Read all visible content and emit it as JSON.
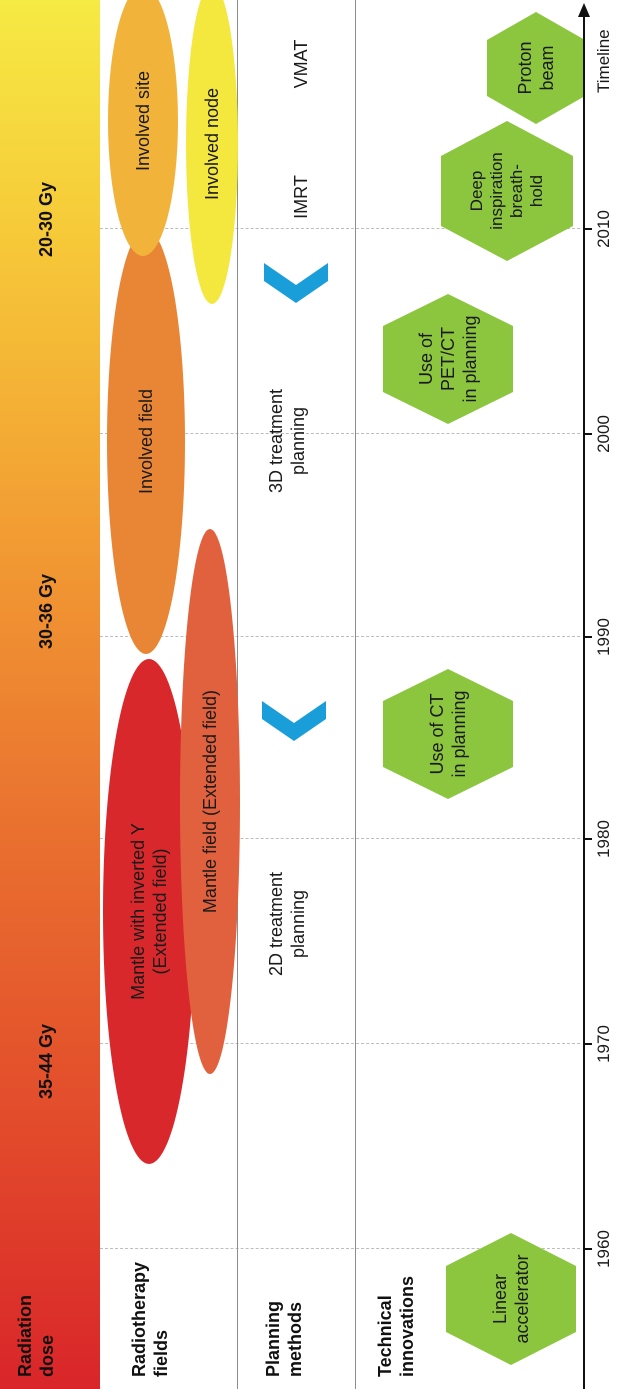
{
  "radiation_dose": {
    "label": "Radiation\ndose",
    "levels": [
      "35-44 Gy",
      "30-36 Gy",
      "20-30 Gy"
    ]
  },
  "radiotherapy_fields": {
    "label": "Radiotherapy\nfields",
    "items": [
      {
        "text": "Mantle with inverted Y\n(Extended field)",
        "color": "#d9282c"
      },
      {
        "text": "Mantle field (Extended field)",
        "color": "#e1613e"
      },
      {
        "text": "Involved field",
        "color": "#e98635"
      },
      {
        "text": "Involved site",
        "color": "#f2b33b"
      },
      {
        "text": "Involved node",
        "color": "#f4e83f"
      }
    ]
  },
  "planning_methods": {
    "label": "Planning\nmethods",
    "items": [
      "2D treatment\nplanning",
      "3D treatment\nplanning",
      "IMRT",
      "VMAT"
    ],
    "arrow_color": "#1a9ed9"
  },
  "technical_innovations": {
    "label": "Technical\ninnovations",
    "items": [
      "Linear\naccelerator",
      "Use of CT\nin planning",
      "Use of\nPET/CT\nin planning",
      "Deep\ninspiration\nbreath-\nhold",
      "Proton\nbeam"
    ],
    "hex_color": "#8cc63f"
  },
  "timeline": {
    "label": "Timeline",
    "ticks": [
      "1960",
      "1970",
      "1980",
      "1990",
      "2000",
      "2010"
    ]
  }
}
